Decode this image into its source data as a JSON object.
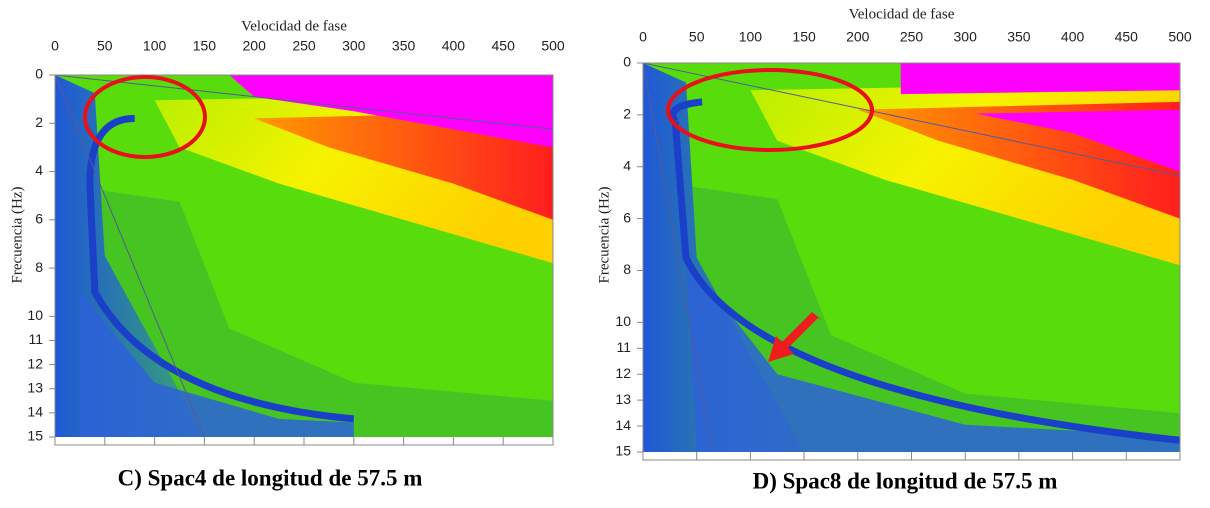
{
  "panels": [
    {
      "x_label": "Velocidad de fase",
      "y_label": "Frecuencia (Hz)",
      "xticks": [
        0,
        50,
        100,
        150,
        200,
        250,
        300,
        350,
        400,
        450,
        500
      ],
      "yticks": [
        0,
        2,
        4,
        6,
        8,
        10,
        11,
        12,
        13,
        14,
        15
      ],
      "caption": "C)  Spac4 de longitud de 57.5 m"
    },
    {
      "x_label": "Velocidad de fase",
      "y_label": "Frecuencia (Hz)",
      "xticks": [
        0,
        50,
        100,
        150,
        200,
        250,
        300,
        350,
        400,
        450,
        500
      ],
      "yticks": [
        0,
        2,
        4,
        6,
        8,
        10,
        11,
        12,
        13,
        14,
        15
      ],
      "caption": "D)  Spac8 de longitud de 57.5 m"
    }
  ]
}
